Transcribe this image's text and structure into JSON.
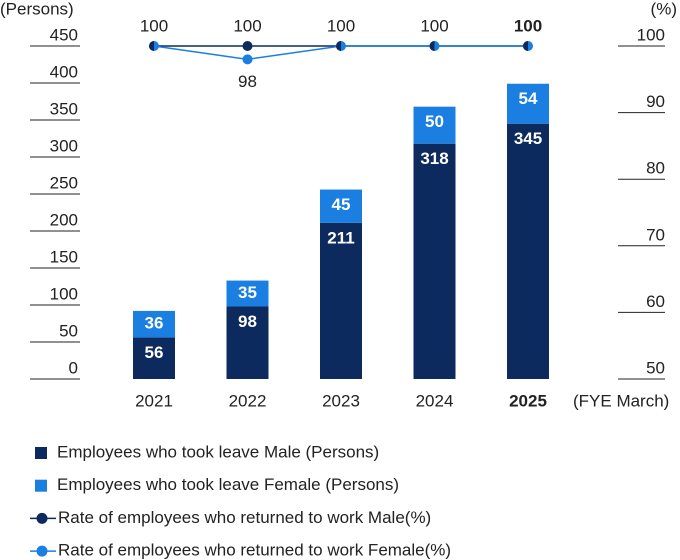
{
  "chart_data": {
    "type": "bar_line",
    "categories": [
      "2021",
      "2022",
      "2023",
      "2024",
      "2025"
    ],
    "highlight_index": 4,
    "y_label": "(Persons)",
    "y2_label": "(%)",
    "x_label": "(FYE March)",
    "ylim": [
      0,
      450
    ],
    "yticks": [
      0,
      50,
      100,
      150,
      200,
      250,
      300,
      350,
      400,
      450
    ],
    "y2lim": [
      50,
      100
    ],
    "y2ticks": [
      50,
      60,
      70,
      80,
      90,
      100
    ],
    "series": [
      {
        "name": "Employees who took leave Male (Persons)",
        "color": "#0d2a5e",
        "kind": "bar",
        "values": [
          56,
          98,
          211,
          318,
          345
        ]
      },
      {
        "name": "Employees who took leave Female (Persons)",
        "color": "#1a7fe0",
        "kind": "bar",
        "values": [
          36,
          35,
          45,
          50,
          54
        ]
      },
      {
        "name": "Rate of employees who returned to work  Male(%)",
        "color": "#0d2a5e",
        "kind": "line",
        "axis": "y2",
        "values": [
          100,
          100,
          100,
          100,
          100
        ]
      },
      {
        "name": "Rate of employees who returned to work  Female(%)",
        "color": "#1a7fe0",
        "kind": "line",
        "axis": "y2",
        "values": [
          100,
          98,
          100,
          100,
          100
        ]
      }
    ]
  }
}
